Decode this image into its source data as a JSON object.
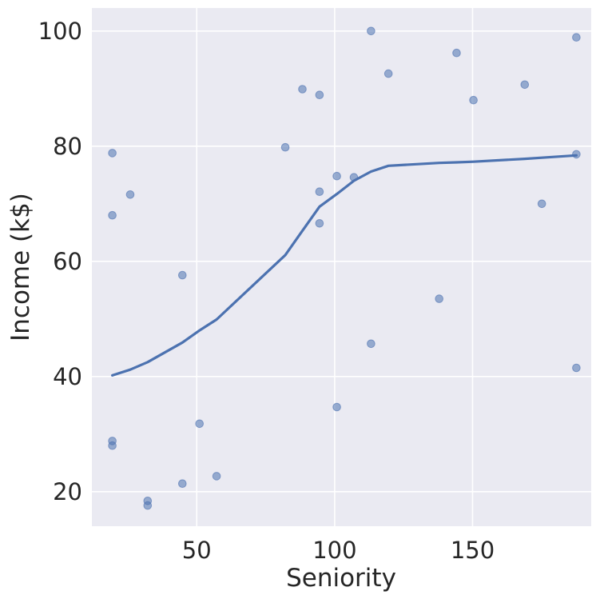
{
  "chart_data": {
    "type": "scatter",
    "title": "",
    "xlabel": "Seniority",
    "ylabel": "Income (k$)",
    "xlim": [
      12,
      193
    ],
    "ylim": [
      14,
      104
    ],
    "xticks": [
      50,
      100,
      150
    ],
    "yticks": [
      20,
      40,
      60,
      80,
      100
    ],
    "grid": true,
    "background": "#eaeaf2",
    "point_color": "#4c72b0",
    "line_color": "#4c72b0",
    "points": [
      {
        "x": 19.4,
        "y": 78.8
      },
      {
        "x": 19.4,
        "y": 68.0
      },
      {
        "x": 19.4,
        "y": 28.8
      },
      {
        "x": 19.4,
        "y": 28.0
      },
      {
        "x": 25.9,
        "y": 71.6
      },
      {
        "x": 32.2,
        "y": 18.4
      },
      {
        "x": 32.2,
        "y": 17.6
      },
      {
        "x": 44.8,
        "y": 57.6
      },
      {
        "x": 44.8,
        "y": 21.4
      },
      {
        "x": 51.0,
        "y": 31.8
      },
      {
        "x": 57.2,
        "y": 22.7
      },
      {
        "x": 82.1,
        "y": 79.8
      },
      {
        "x": 88.3,
        "y": 89.9
      },
      {
        "x": 94.5,
        "y": 88.9
      },
      {
        "x": 94.5,
        "y": 72.1
      },
      {
        "x": 94.5,
        "y": 66.6
      },
      {
        "x": 100.8,
        "y": 74.8
      },
      {
        "x": 100.8,
        "y": 34.7
      },
      {
        "x": 107.0,
        "y": 74.6
      },
      {
        "x": 113.2,
        "y": 100.0
      },
      {
        "x": 113.2,
        "y": 45.7
      },
      {
        "x": 119.5,
        "y": 92.6
      },
      {
        "x": 137.9,
        "y": 53.5
      },
      {
        "x": 144.2,
        "y": 96.2
      },
      {
        "x": 150.3,
        "y": 88.0
      },
      {
        "x": 168.9,
        "y": 90.7
      },
      {
        "x": 175.1,
        "y": 70.0
      },
      {
        "x": 187.6,
        "y": 98.9
      },
      {
        "x": 187.6,
        "y": 78.6
      },
      {
        "x": 187.6,
        "y": 41.5
      }
    ],
    "trend_line": {
      "x": [
        19.4,
        25.9,
        32.2,
        44.8,
        51.0,
        57.2,
        82.1,
        88.3,
        94.5,
        100.8,
        107.0,
        113.2,
        119.5,
        137.9,
        144.2,
        150.3,
        168.9,
        175.1,
        187.6
      ],
      "y": [
        40.2,
        41.2,
        42.5,
        45.9,
        48.0,
        49.9,
        61.1,
        65.3,
        69.5,
        71.7,
        74.0,
        75.6,
        76.6,
        77.1,
        77.2,
        77.3,
        77.8,
        78.0,
        78.4
      ]
    }
  }
}
